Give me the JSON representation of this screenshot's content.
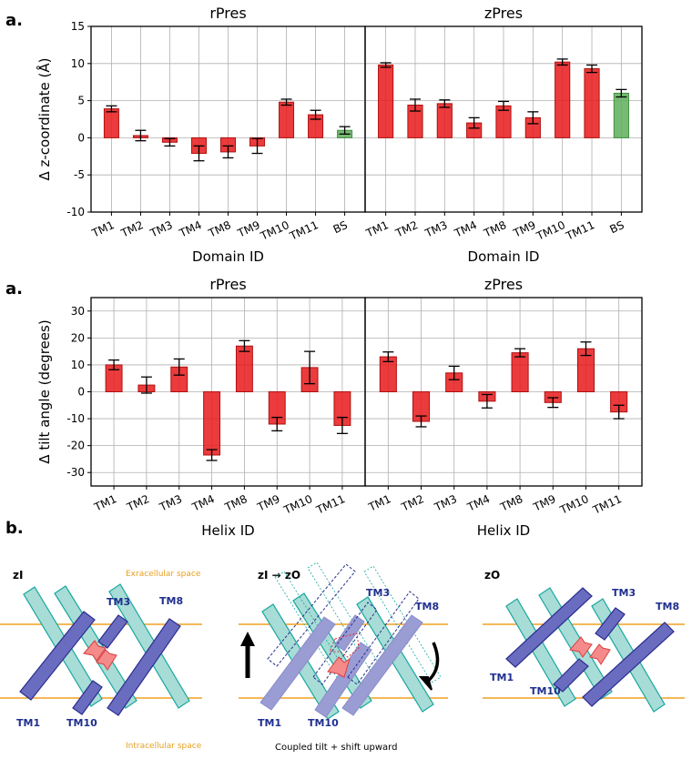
{
  "figure": {
    "panel_a_label": "a.",
    "panel_a2_label": "a.",
    "panel_b_label": "b."
  },
  "chart_data": [
    {
      "type": "bar",
      "title": "rPres",
      "xlabel": "Domain ID",
      "ylabel": "Δ z-coordinate (Å)",
      "ylim": [
        -10,
        15
      ],
      "yticks": [
        -10,
        -5,
        0,
        5,
        10,
        15
      ],
      "grid": true,
      "categories": [
        "TM1",
        "TM2",
        "TM3",
        "TM4",
        "TM8",
        "TM9",
        "TM10",
        "TM11",
        "BS"
      ],
      "values": [
        3.9,
        0.3,
        -0.6,
        -2.1,
        -1.9,
        -1.1,
        4.8,
        3.1,
        1.0
      ],
      "errors": [
        0.4,
        0.7,
        0.5,
        1.0,
        0.8,
        1.0,
        0.4,
        0.6,
        0.5
      ],
      "bar_colors": [
        "#e8191a",
        "#e8191a",
        "#e8191a",
        "#e8191a",
        "#e8191a",
        "#e8191a",
        "#e8191a",
        "#e8191a",
        "#5fae5a"
      ]
    },
    {
      "type": "bar",
      "title": "zPres",
      "xlabel": "Domain ID",
      "ylabel": "",
      "ylim": [
        -10,
        15
      ],
      "yticks": [
        -10,
        -5,
        0,
        5,
        10,
        15
      ],
      "grid": true,
      "categories": [
        "TM1",
        "TM2",
        "TM3",
        "TM4",
        "TM8",
        "TM9",
        "TM10",
        "TM11",
        "BS"
      ],
      "values": [
        9.8,
        4.4,
        4.6,
        2.0,
        4.3,
        2.7,
        10.2,
        9.3,
        6.0
      ],
      "errors": [
        0.3,
        0.8,
        0.5,
        0.7,
        0.6,
        0.8,
        0.4,
        0.5,
        0.5
      ],
      "bar_colors": [
        "#e8191a",
        "#e8191a",
        "#e8191a",
        "#e8191a",
        "#e8191a",
        "#e8191a",
        "#e8191a",
        "#e8191a",
        "#5fae5a"
      ]
    },
    {
      "type": "bar",
      "title": "rPres",
      "xlabel": "Helix ID",
      "ylabel": "Δ tilt angle (degrees)",
      "ylim": [
        -35,
        35
      ],
      "yticks": [
        -30,
        -20,
        -10,
        0,
        10,
        20,
        30
      ],
      "grid": true,
      "categories": [
        "TM1",
        "TM2",
        "TM3",
        "TM4",
        "TM8",
        "TM9",
        "TM10",
        "TM11"
      ],
      "values": [
        10.0,
        2.5,
        9.2,
        -23.5,
        17.0,
        -12.0,
        9.0,
        -12.5
      ],
      "errors": [
        1.8,
        3.0,
        3.0,
        2.0,
        2.0,
        2.5,
        6.0,
        3.0
      ],
      "bar_colors": [
        "#e8191a",
        "#e8191a",
        "#e8191a",
        "#e8191a",
        "#e8191a",
        "#e8191a",
        "#e8191a",
        "#e8191a"
      ]
    },
    {
      "type": "bar",
      "title": "zPres",
      "xlabel": "Helix ID",
      "ylabel": "",
      "ylim": [
        -35,
        35
      ],
      "yticks": [
        -30,
        -20,
        -10,
        0,
        10,
        20,
        30
      ],
      "grid": true,
      "categories": [
        "TM1",
        "TM2",
        "TM3",
        "TM4",
        "TM8",
        "TM9",
        "TM10",
        "TM11"
      ],
      "values": [
        13.0,
        -11.0,
        7.0,
        -3.5,
        14.5,
        -4.0,
        16.0,
        -7.5
      ],
      "errors": [
        1.8,
        2.0,
        2.5,
        2.5,
        1.5,
        1.8,
        2.5,
        2.5
      ],
      "bar_colors": [
        "#e8191a",
        "#e8191a",
        "#e8191a",
        "#e8191a",
        "#e8191a",
        "#e8191a",
        "#e8191a",
        "#e8191a"
      ]
    }
  ],
  "diagram": {
    "states": [
      "zI",
      "zI → zO",
      "zO"
    ],
    "extracellular": "Exracellular space",
    "intracellular": "Intracellular space",
    "caption": "Coupled tilt + shift upward",
    "labels_left": [
      "TM3",
      "TM8",
      "TM1",
      "TM10"
    ],
    "labels_mid": [
      "TM3",
      "TM8",
      "TM1",
      "TM10"
    ],
    "labels_right": [
      "TM3",
      "TM8",
      "TM1",
      "TM10"
    ],
    "colors": {
      "membrane": "#f0a020",
      "teal": "#a8dcd6",
      "teal_edge": "#1aa7a0",
      "purple": "#6a6cc0",
      "purple_edge": "#2b2f8f",
      "light_purple": "#9a9cd4",
      "arrow_red": "#f58a8a"
    }
  }
}
